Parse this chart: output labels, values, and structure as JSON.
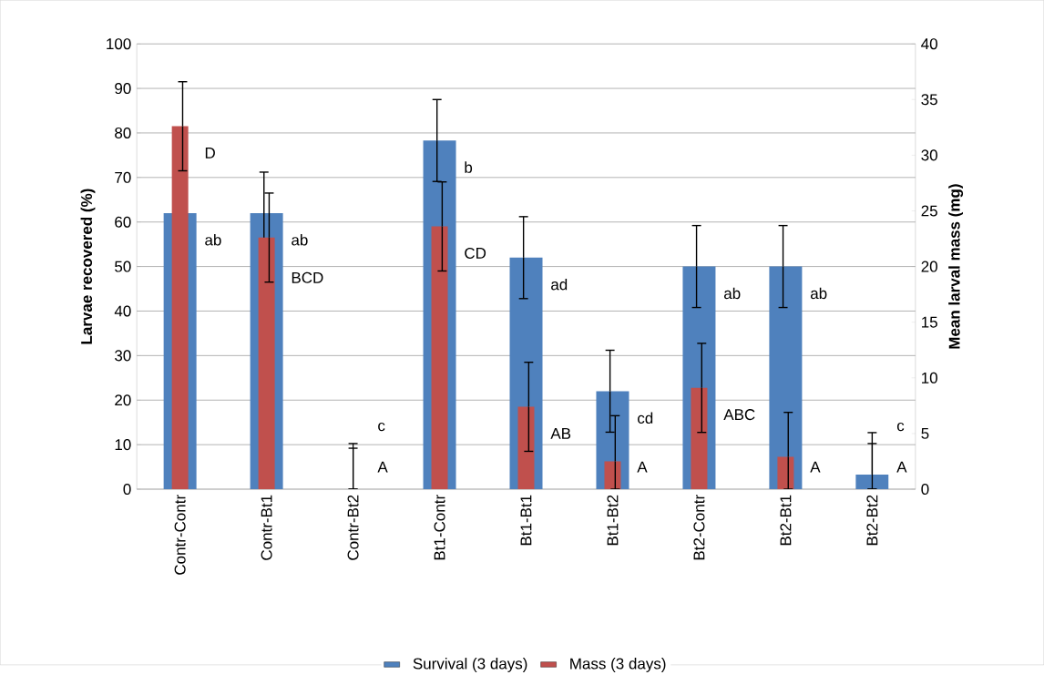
{
  "chart_data": {
    "type": "bar",
    "ylabel": "Larvae recovered (%)",
    "y2label": "Mean larval mass (mg)",
    "categories": [
      "Contr-Contr",
      "Contr-Bt1",
      "Contr-Bt2",
      "Bt1-Contr",
      "Bt1-Bt1",
      "Bt1-Bt2",
      "Bt2-Contr",
      "Bt2-Bt1",
      "Bt2-Bt2"
    ],
    "series": [
      {
        "name": "Survival (3 days)",
        "color": "#4f81bd",
        "values": [
          62,
          62,
          0,
          78.3,
          52,
          22,
          50,
          50,
          3.3
        ],
        "errors": [
          null,
          9.2,
          [
            0,
            9.2
          ],
          9.2,
          9.2,
          9.2,
          9.2,
          9.2,
          [
            0,
            12.7
          ]
        ]
      },
      {
        "name": "Mass (3 days)",
        "color": "#c0504d",
        "axis": "y2",
        "values": [
          32.6,
          22.6,
          0,
          23.6,
          7.4,
          2.5,
          9.1,
          2.9,
          0
        ],
        "errors": [
          4,
          4,
          [
            0,
            4.1
          ],
          4,
          4,
          [
            0,
            6.6
          ],
          4,
          [
            0,
            6.9
          ],
          [
            0,
            4.1
          ]
        ]
      }
    ],
    "ylim": [
      0,
      100
    ],
    "yticks": [
      0,
      10,
      20,
      30,
      40,
      50,
      60,
      70,
      80,
      90,
      100
    ],
    "y2lim": [
      0,
      40
    ],
    "y2ticks": [
      0,
      5,
      10,
      15,
      20,
      25,
      30,
      35,
      40
    ],
    "grid": "y",
    "legend": "bottom",
    "annotations": [
      "ab",
      "D",
      "ab",
      "BCD",
      "c",
      "A",
      "b",
      "CD",
      "ad",
      "AB",
      "cd",
      "A",
      "ab",
      "ABC",
      "ab",
      "A",
      "c",
      "A"
    ]
  }
}
